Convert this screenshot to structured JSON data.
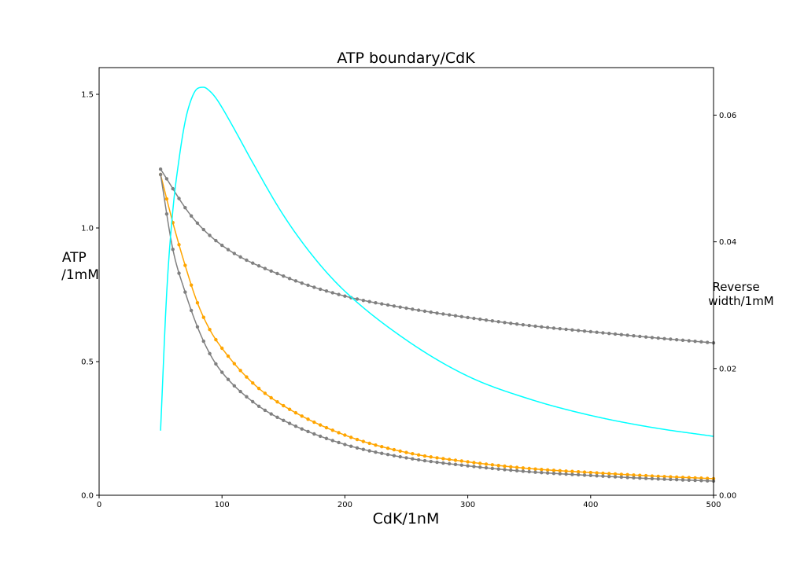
{
  "chart_data": {
    "type": "line",
    "title": "ATP boundary/CdK",
    "xlabel": "CdK/1nM",
    "ylabel_lines": [
      "ATP",
      "/1mM"
    ],
    "y2label_lines": [
      "Reverse",
      "width/1mM"
    ],
    "xlim": [
      0,
      500
    ],
    "ylim": [
      0,
      1.6
    ],
    "y2lim": [
      0,
      0.0675
    ],
    "x_ticks": [
      "0",
      "100",
      "200",
      "300",
      "400",
      "500"
    ],
    "y_ticks": [
      "0.0",
      "0.5",
      "1.0",
      "1.5"
    ],
    "y2_ticks": [
      "0.00",
      "0.02",
      "0.04",
      "0.06"
    ],
    "legend": "none",
    "grid": false,
    "series": [
      {
        "color": "#808080",
        "marker": "dot",
        "axis": "left",
        "x": [
          50,
          75,
          100,
          150,
          200,
          250,
          300,
          350,
          400,
          450,
          500
        ],
        "y": [
          1.22,
          1.045,
          0.935,
          0.82,
          0.745,
          0.7,
          0.665,
          0.635,
          0.612,
          0.59,
          0.57
        ]
      },
      {
        "color": "#ffa500",
        "marker": "dot",
        "axis": "left",
        "x": [
          50,
          60,
          70,
          80,
          90,
          100,
          125,
          150,
          200,
          250,
          300,
          350,
          400,
          450,
          500
        ],
        "y": [
          1.2,
          1.02,
          0.86,
          0.72,
          0.62,
          0.55,
          0.42,
          0.335,
          0.225,
          0.16,
          0.125,
          0.1,
          0.085,
          0.072,
          0.062
        ]
      },
      {
        "color": "#808080",
        "marker": "dot",
        "axis": "left",
        "x": [
          50,
          60,
          70,
          80,
          90,
          100,
          125,
          150,
          200,
          250,
          300,
          350,
          400,
          450,
          500
        ],
        "y": [
          1.2,
          0.92,
          0.76,
          0.63,
          0.53,
          0.46,
          0.35,
          0.28,
          0.19,
          0.14,
          0.11,
          0.088,
          0.074,
          0.062,
          0.053
        ]
      },
      {
        "color": "#00ffff",
        "marker": "none",
        "axis": "right",
        "x": [
          50,
          55,
          60,
          65,
          70,
          75,
          80,
          85,
          90,
          95,
          100,
          110,
          125,
          150,
          175,
          200,
          250,
          300,
          350,
          400,
          450,
          500
        ],
        "y": [
          0.0102,
          0.032,
          0.045,
          0.053,
          0.059,
          0.0625,
          0.0642,
          0.0644,
          0.0638,
          0.0627,
          0.0612,
          0.0578,
          0.0525,
          0.0442,
          0.0375,
          0.0322,
          0.0245,
          0.0188,
          0.0152,
          0.0126,
          0.0107,
          0.0093
        ]
      }
    ]
  }
}
